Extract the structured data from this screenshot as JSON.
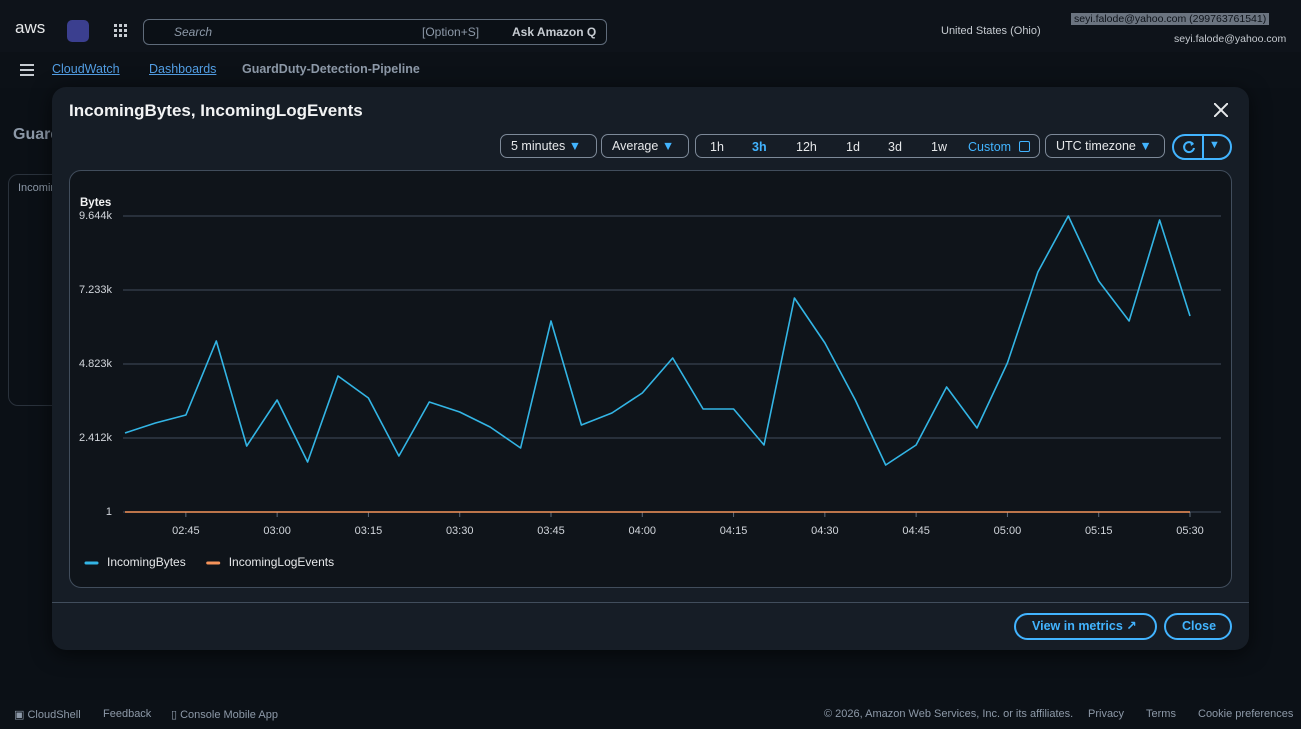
{
  "header": {
    "logo": "aws",
    "search_placeholder": "Search",
    "search_shortcut": "[Option+S]",
    "ask_q": "Ask Amazon Q",
    "region": "United States (Ohio)",
    "account": "seyi.falode@yahoo.com (299763761541)",
    "user": "seyi.falode@yahoo.com"
  },
  "breadcrumb": [
    "CloudWatch",
    "Dashboards",
    "GuardDuty-Detection-Pipeline"
  ],
  "modal": {
    "title": "IncomingBytes, IncomingLogEvents",
    "period": "5 minutes",
    "statistic": "Average",
    "ranges": [
      "1h",
      "3h",
      "12h",
      "1d",
      "3d",
      "1w"
    ],
    "selected_range": 1,
    "custom": "Custom",
    "timezone": "UTC timezone",
    "chart": {
      "type": "line",
      "y_label": "Bytes",
      "categories": [
        null,
        null,
        "02:45",
        null,
        null,
        "03:00",
        null,
        null,
        "03:15",
        null,
        null,
        "03:30",
        null,
        null,
        "03:45",
        null,
        null,
        "04:00",
        null,
        null,
        "04:15",
        null,
        null,
        "04:30",
        null,
        null,
        "04:45",
        null,
        null,
        "05:00",
        null,
        null,
        "05:15",
        null,
        null,
        "05:30"
      ],
      "series": [
        {
          "name": "IncomingBytes",
          "color": "#33b5e5",
          "values": [
            2574,
            2900,
            3160,
            5571,
            2150,
            3649,
            1629,
            4431,
            3714,
            1824,
            3584,
            3258,
            2769,
            2085,
            6223,
            2834,
            3225,
            3877,
            5017,
            3356,
            3356,
            2183,
            6972,
            5506,
            3649,
            1531,
            2183,
            4073,
            2737,
            4854,
            7819,
            9644,
            7526,
            6223,
            9513,
            6386
          ]
        },
        {
          "name": "IncomingLogEvents",
          "color": "#f6935a",
          "values": [
            1,
            1,
            1,
            1,
            1,
            1,
            1,
            1,
            1,
            1,
            1,
            1,
            1,
            1,
            1,
            1,
            1,
            1,
            1,
            1,
            1,
            1,
            1,
            1,
            1,
            1,
            1,
            1,
            1,
            1,
            1,
            1,
            1,
            1,
            1,
            1
          ]
        }
      ],
      "ylim": [
        1,
        9644
      ],
      "yticks": [
        1,
        {
          "value": 2412,
          "label": "2.412k"
        },
        {
          "value": 4823,
          "label": "4.823k"
        },
        {
          "value": 7233,
          "label": "7.233k"
        },
        {
          "value": 9644,
          "label": "9.644k"
        }
      ],
      "grid": true
    },
    "view_in_metrics": "View in metrics",
    "close": "Close"
  },
  "footer": {
    "cloudshell": "CloudShell",
    "feedback": "Feedback",
    "mobile_app": "Console Mobile App",
    "copyright": "© 2026, Amazon Web Services, Inc. or its affiliates.",
    "privacy": "Privacy",
    "terms": "Terms",
    "cookies": "Cookie preferences"
  }
}
